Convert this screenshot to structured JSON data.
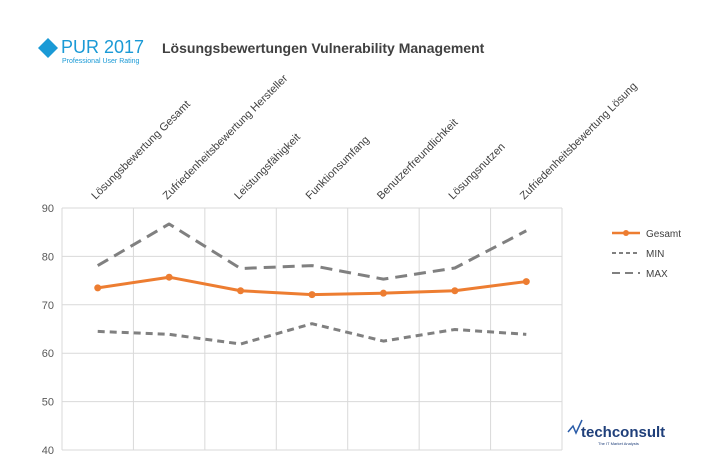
{
  "header": {
    "logo_main": "PUR 2017",
    "logo_sub": "Professional User Rating",
    "title": "Lösungsbewertungen Vulnerability Management",
    "brand_logo": "techconsult",
    "brand_tagline": "The IT Market Analysts"
  },
  "chart_data": {
    "type": "line",
    "title": "Lösungsbewertungen Vulnerability Management",
    "categories": [
      "Lösungsbewertung Gesamt",
      "Zufriedenheitsbewertung Hersteller",
      "Leistungsfähigkeit",
      "Funktionsumfang",
      "Benutzerfreundlichkeit",
      "Lösungsnutzen",
      "Zufriedenheitsbewertung Lösung"
    ],
    "ylim": [
      40,
      90
    ],
    "yticks": [
      40,
      50,
      60,
      70,
      80,
      90
    ],
    "grid": true,
    "legend": "right",
    "series": [
      {
        "name": "Gesamt",
        "values": [
          73.5,
          75.7,
          72.9,
          72.1,
          72.4,
          72.9,
          74.8
        ],
        "color": "#ed7d31",
        "style": "solid-markers"
      },
      {
        "name": "MIN",
        "values": [
          64.5,
          63.9,
          61.9,
          66.1,
          62.5,
          64.9,
          63.9
        ],
        "color": "#808080",
        "style": "short-dash"
      },
      {
        "name": "MAX",
        "values": [
          78.1,
          86.7,
          77.5,
          78.1,
          75.3,
          77.6,
          85.3
        ],
        "color": "#808080",
        "style": "long-dash"
      }
    ]
  }
}
